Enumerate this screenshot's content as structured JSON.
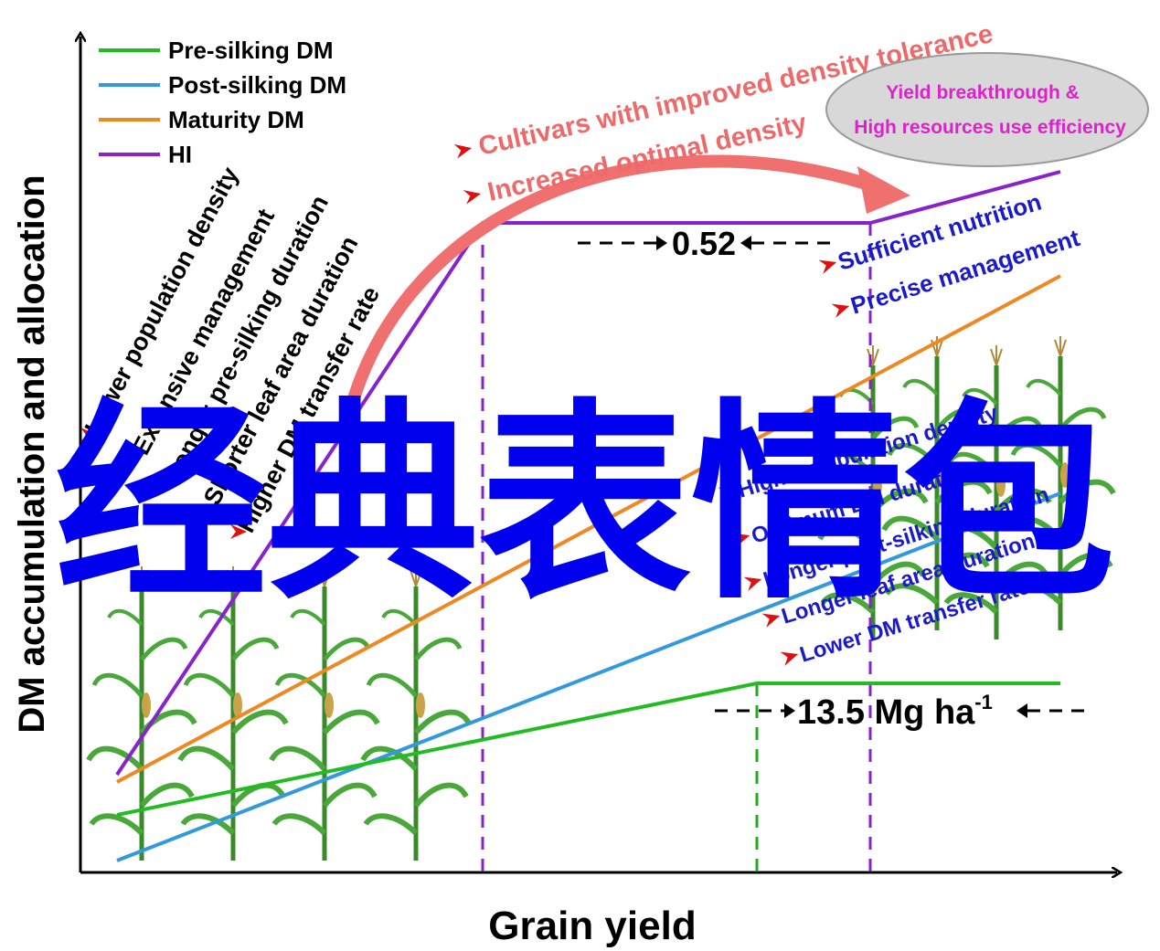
{
  "axes": {
    "xlabel": "Grain yield",
    "ylabel": "DM accumulation and allocation"
  },
  "legend": {
    "items": [
      {
        "label": "Pre-silking DM",
        "color": "#22bb22"
      },
      {
        "label": "Post-silking DM",
        "color": "#3399dd"
      },
      {
        "label": "Maturity DM",
        "color": "#ee8822"
      },
      {
        "label": "HI",
        "color": "#8822cc"
      }
    ]
  },
  "left_factors": [
    "Lower population density",
    "Extensive management",
    "Longer pre-silking duration",
    "Shorter leaf area duration",
    "Higher DM transfer rate"
  ],
  "arrow_labels": {
    "tolerance": "Cultivars with improved density tolerance",
    "density": "Increased optimal density"
  },
  "ellipse": {
    "line1": "Yield breakthrough &",
    "line2": "High resources use efficiency"
  },
  "hi_value": "0.52",
  "yield_value": {
    "main": "13.5 Mg ha",
    "sup": "-1"
  },
  "right_factors_top": [
    "Sufficient nutrition",
    "Precise management"
  ],
  "right_factors_bottom": [
    "Higher population density",
    "Optimum LAI duration",
    "Longer post-silking duration",
    "Longer leaf area duration",
    "Lower DM transfer rate"
  ],
  "watermark": "经典表情包",
  "colors": {
    "pre": "#22bb22",
    "post": "#3399dd",
    "maturity": "#ee8822",
    "hi": "#8822cc",
    "big_arrow": "#f07070",
    "right_text": "#1a1acc",
    "ellipse_text": "#dd22cc",
    "ellipse_fill": "#d8d8d8",
    "marker": "#dd1111",
    "watermark": "#0000ee"
  }
}
